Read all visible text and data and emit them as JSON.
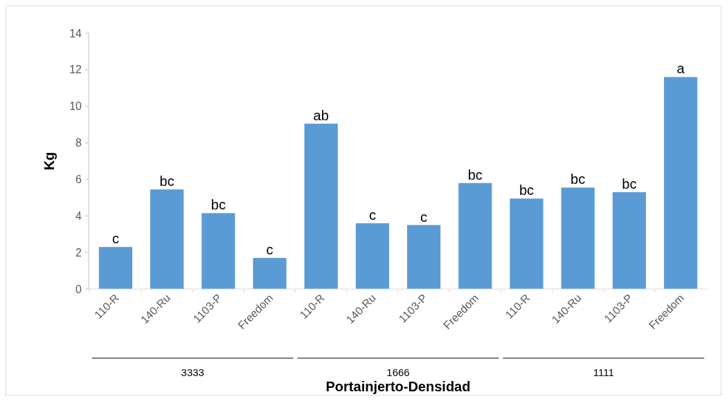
{
  "chart_data": {
    "type": "bar",
    "xlabel": "Portainjerto-Densidad",
    "ylabel": "Kg",
    "categories": [
      "110-R",
      "140-Ru",
      "1103-P",
      "Freedom",
      "110-R",
      "140-Ru",
      "1103-P",
      "Freedom",
      "110-R",
      "140-Ru",
      "1103-P",
      "Freedom"
    ],
    "values": [
      2.3,
      5.45,
      4.15,
      1.7,
      9.05,
      3.6,
      3.5,
      5.8,
      4.95,
      5.55,
      5.3,
      11.6
    ],
    "value_labels": [
      "c",
      "bc",
      "bc",
      "c",
      "ab",
      "c",
      "c",
      "bc",
      "bc",
      "bc",
      "bc",
      "a"
    ],
    "color": "#5b9bd5",
    "ylim": [
      0,
      14
    ],
    "yticks": [
      0,
      2,
      4,
      6,
      8,
      10,
      12,
      14
    ],
    "annotations": [
      "3333",
      "1666",
      "1111"
    ]
  }
}
